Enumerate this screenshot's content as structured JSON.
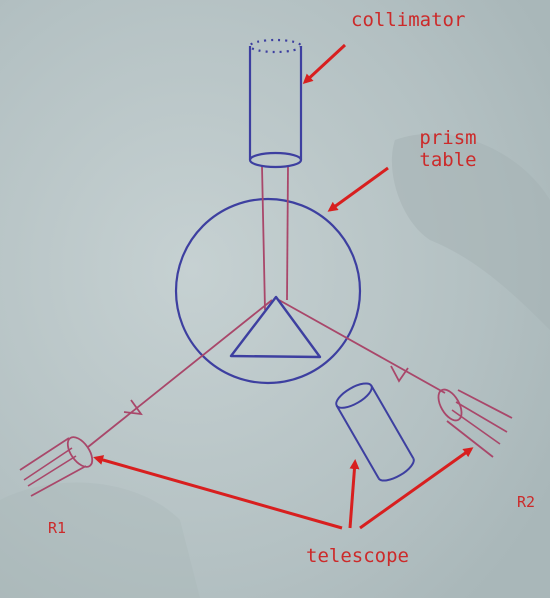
{
  "labels": {
    "collimator": "collimator",
    "prism_table": "prism\ntable",
    "telescope": "telescope",
    "r1": "R1",
    "r2": "R2"
  },
  "colors": {
    "background": "#b3c1c3",
    "background_light": "#c4d0d1",
    "ink_blue": "#3d3fa0",
    "ink_red": "#d81f1f",
    "ray": "#a9476a",
    "label": "#cc2a2a"
  },
  "icons": {
    "arrow": "red-arrow-icon",
    "ray_arrowhead": "ray-arrowhead-icon"
  }
}
